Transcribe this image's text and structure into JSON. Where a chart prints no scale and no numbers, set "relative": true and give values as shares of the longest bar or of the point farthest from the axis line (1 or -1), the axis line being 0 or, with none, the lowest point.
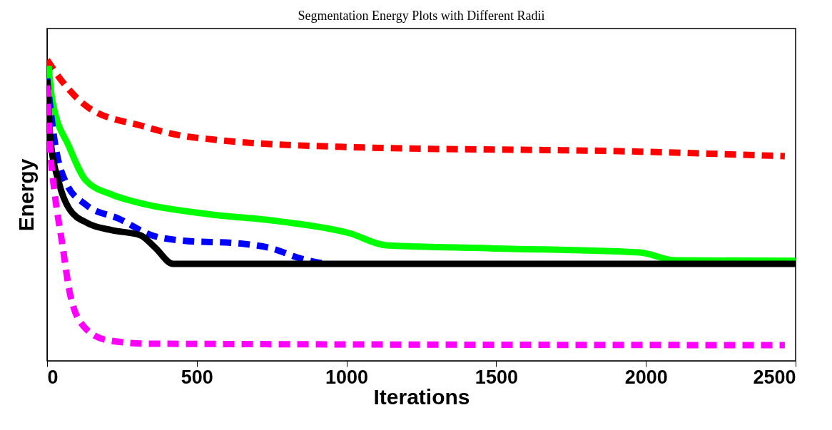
{
  "chart_data": {
    "type": "line",
    "title": "Segmentation Energy Plots with Different Radii",
    "xlabel": "Iterations",
    "ylabel": "Energy",
    "relative": true,
    "xlim": [
      0,
      2500
    ],
    "xticks": [
      0,
      500,
      1000,
      1500,
      2000,
      2500
    ],
    "grid": false,
    "series": [
      {
        "color": "#ff0000",
        "line_style": "dashed",
        "x": [
          0,
          57,
          140,
          319,
          438,
          557,
          1014,
          1979,
          2464
        ],
        "values": [
          1.0,
          0.92,
          0.84,
          0.78,
          0.75,
          0.735,
          0.71,
          0.695,
          0.68
        ]
      },
      {
        "color": "#00ff00",
        "line_style": "solid",
        "x": [
          5,
          17,
          74,
          129,
          217,
          295,
          533,
          771,
          1010,
          1133,
          1481,
          1979,
          2098,
          2500
        ],
        "values": [
          0.98,
          0.867,
          0.71,
          0.6,
          0.552,
          0.528,
          0.488,
          0.464,
          0.424,
          0.384,
          0.374,
          0.36,
          0.334,
          0.332
        ]
      },
      {
        "color": "#0000ff",
        "line_style": "dashed",
        "x": [
          0,
          26,
          64,
          129,
          240,
          350,
          445,
          652,
          748,
          850,
          931
        ],
        "values": [
          0.938,
          0.725,
          0.59,
          0.519,
          0.472,
          0.417,
          0.4,
          0.389,
          0.374,
          0.339,
          0.322
        ]
      },
      {
        "color": "#000000",
        "line_style": "solid",
        "x": [
          0,
          10,
          40,
          74,
          136,
          217,
          312,
          360,
          421,
          2500
        ],
        "values": [
          0.934,
          0.749,
          0.59,
          0.505,
          0.457,
          0.434,
          0.417,
          0.377,
          0.322,
          0.322
        ]
      },
      {
        "color": "#ff00ff",
        "line_style": "dashed",
        "x": [
          0,
          10,
          26,
          50,
          74,
          121,
          200,
          336,
          2464
        ],
        "values": [
          0.915,
          0.709,
          0.552,
          0.393,
          0.235,
          0.116,
          0.069,
          0.057,
          0.052
        ]
      }
    ]
  }
}
